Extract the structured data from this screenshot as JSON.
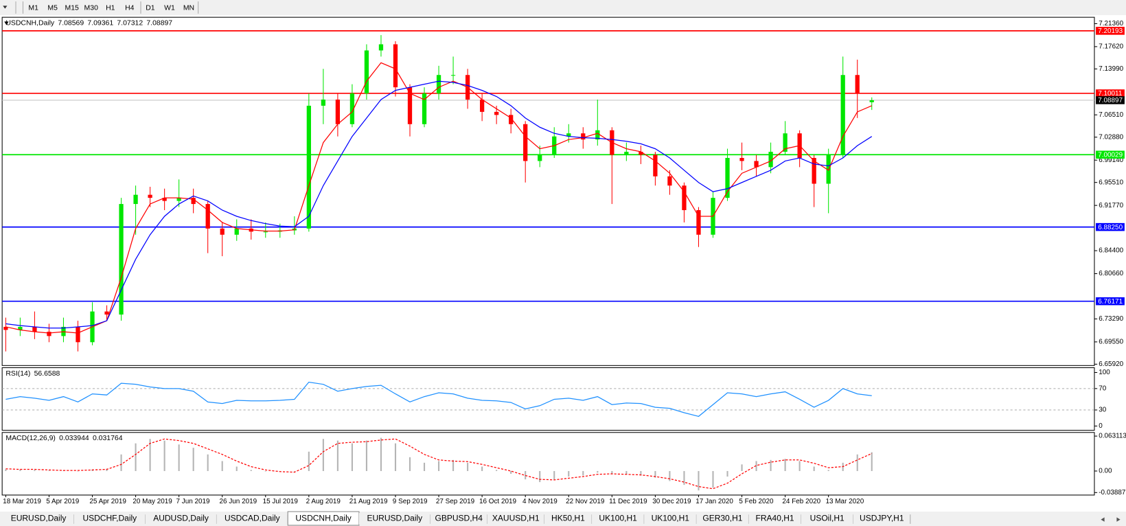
{
  "toolbar": [
    "M1",
    "M5",
    "M15",
    "M30",
    "H1",
    "H4",
    "D1",
    "W1",
    "MN"
  ],
  "chart_data": [
    {
      "type": "candlestick",
      "title": "USDCNH,Daily",
      "categories": [
        "18 Mar 2019",
        null,
        null,
        "5 Apr 2019",
        null,
        null,
        "25 Apr 2019",
        null,
        null,
        "20 May 2019",
        null,
        null,
        "7 Jun 2019",
        null,
        null,
        "26 Jun 2019",
        null,
        null,
        "15 Jul 2019",
        null,
        null,
        "2 Aug 2019",
        null,
        null,
        "21 Aug 2019",
        null,
        null,
        "9 Sep 2019",
        null,
        null,
        "27 Sep 2019",
        null,
        null,
        "16 Oct 2019",
        null,
        null,
        "4 Nov 2019",
        null,
        null,
        "22 Nov 2019",
        null,
        null,
        "11 Dec 2019",
        null,
        null,
        "30 Dec 2019",
        null,
        null,
        "17 Jan 2020",
        null,
        null,
        "5 Feb 2020",
        null,
        null,
        "24 Feb 2020",
        null,
        null,
        "13 Mar 2020",
        null,
        null,
        null
      ],
      "open": [
        6.72,
        6.715,
        6.72,
        6.712,
        6.705,
        6.72,
        6.695,
        6.745,
        6.74,
        6.92,
        6.935,
        6.93,
        6.925,
        6.93,
        6.92,
        6.88,
        6.87,
        6.88,
        6.875,
        6.875,
        6.877,
        6.88,
        7.08,
        7.09,
        7.05,
        7.1,
        7.17,
        7.18,
        7.11,
        7.05,
        7.1,
        7.13,
        7.13,
        7.09,
        7.07,
        7.065,
        7.05,
        6.99,
        7.0,
        7.03,
        7.035,
        7.025,
        7.04,
        7.0,
        7.005,
        7.0,
        6.965,
        6.95,
        6.91,
        6.87,
        6.93,
        6.995,
        6.99,
        6.98,
        7.005,
        7.035,
        6.995,
        6.953,
        7.0,
        7.13,
        7.08569
      ],
      "high": [
        6.735,
        6.735,
        6.745,
        6.725,
        6.735,
        6.73,
        6.76,
        6.755,
        6.93,
        6.95,
        6.948,
        6.945,
        6.96,
        6.945,
        6.925,
        6.89,
        6.895,
        6.895,
        6.89,
        6.888,
        6.9,
        7.1,
        7.14,
        7.1,
        7.115,
        7.18,
        7.195,
        7.185,
        7.115,
        7.11,
        7.145,
        7.16,
        7.14,
        7.1,
        7.08,
        7.075,
        7.055,
        7.015,
        7.045,
        7.05,
        7.045,
        7.09,
        7.045,
        7.02,
        7.015,
        7.005,
        6.975,
        6.955,
        6.915,
        6.94,
        7.01,
        7.02,
        7.0,
        7.02,
        7.055,
        7.04,
        7.0,
        7.01,
        7.16,
        7.155,
        7.09361
      ],
      "low": [
        6.68,
        6.705,
        6.7,
        6.695,
        6.695,
        6.68,
        6.69,
        6.73,
        6.73,
        6.87,
        6.915,
        6.91,
        6.915,
        6.905,
        6.84,
        6.835,
        6.86,
        6.862,
        6.865,
        6.865,
        6.87,
        6.875,
        7.05,
        7.03,
        7.045,
        7.09,
        7.16,
        7.095,
        7.03,
        7.045,
        7.09,
        7.115,
        7.075,
        7.055,
        7.05,
        7.035,
        6.955,
        6.98,
        6.995,
        7.02,
        7.01,
        7.015,
        6.92,
        6.99,
        6.985,
        6.95,
        6.935,
        6.89,
        6.85,
        6.865,
        6.925,
        6.975,
        6.965,
        6.97,
        7.0,
        6.98,
        6.915,
        6.905,
        6.995,
        7.06,
        7.07312
      ],
      "close": [
        6.715,
        6.72,
        6.712,
        6.705,
        6.72,
        6.695,
        6.745,
        6.74,
        6.92,
        6.935,
        6.93,
        6.925,
        6.93,
        6.92,
        6.88,
        6.87,
        6.88,
        6.875,
        6.875,
        6.877,
        6.88,
        7.08,
        7.09,
        7.05,
        7.1,
        7.17,
        7.18,
        7.11,
        7.05,
        7.1,
        7.13,
        7.13,
        7.09,
        7.07,
        7.065,
        7.05,
        6.99,
        7.0,
        7.03,
        7.035,
        7.025,
        7.04,
        7.0,
        7.005,
        7.0,
        6.965,
        6.95,
        6.91,
        6.87,
        6.93,
        6.995,
        6.99,
        6.98,
        7.005,
        7.035,
        6.995,
        6.953,
        7.0,
        7.13,
        7.1,
        7.08897
      ],
      "up_color": "#00e600",
      "down_color": "#ff0000",
      "series": [
        {
          "color": "#ff0000",
          "values": [
            6.72,
            6.715,
            6.712,
            6.71,
            6.712,
            6.71,
            6.72,
            6.73,
            6.8,
            6.88,
            6.92,
            6.93,
            6.93,
            6.928,
            6.91,
            6.89,
            6.88,
            6.878,
            6.876,
            6.876,
            6.878,
            6.95,
            7.02,
            7.05,
            7.07,
            7.12,
            7.15,
            7.14,
            7.1,
            7.09,
            7.11,
            7.12,
            7.11,
            7.09,
            7.075,
            7.06,
            7.03,
            7.01,
            7.015,
            7.025,
            7.028,
            7.035,
            7.02,
            7.01,
            7.005,
            6.99,
            6.97,
            6.94,
            6.9,
            6.9,
            6.94,
            6.97,
            6.98,
            6.99,
            7.01,
            7.015,
            6.99,
            6.975,
            7.03,
            7.07,
            7.08
          ]
        },
        {
          "color": "#0000ff",
          "values": [
            6.725,
            6.722,
            6.72,
            6.718,
            6.718,
            6.72,
            6.722,
            6.73,
            6.78,
            6.83,
            6.87,
            6.9,
            6.92,
            6.933,
            6.925,
            6.91,
            6.9,
            6.893,
            6.888,
            6.884,
            6.883,
            6.9,
            6.95,
            6.99,
            7.03,
            7.06,
            7.09,
            7.105,
            7.11,
            7.115,
            7.12,
            7.118,
            7.113,
            7.105,
            7.095,
            7.08,
            7.06,
            7.045,
            7.035,
            7.03,
            7.028,
            7.027,
            7.025,
            7.022,
            7.018,
            7.01,
            6.995,
            6.975,
            6.955,
            6.94,
            6.945,
            6.955,
            6.965,
            6.975,
            6.99,
            6.995,
            6.985,
            6.982,
            6.995,
            7.015,
            7.03
          ]
        }
      ],
      "levels": [
        {
          "value": 7.20193,
          "color": "#ff0000"
        },
        {
          "value": 7.10011,
          "color": "#ff0000"
        },
        {
          "value": 7.00029,
          "color": "#00e600"
        },
        {
          "value": 6.8825,
          "label": "6.88250",
          "color": "#0000ff"
        },
        {
          "value": 6.76171,
          "color": "#0000ff"
        }
      ],
      "ylim": [
        6.657,
        7.224
      ],
      "yticks": [
        {
          "value": 7.2136,
          "label": "7.21360"
        },
        {
          "value": 7.1762,
          "label": "7.17620"
        },
        {
          "value": 7.1399,
          "label": "7.13990"
        },
        {
          "value": 7.0651,
          "label": "7.06510"
        },
        {
          "value": 7.0288,
          "label": "7.02880"
        },
        {
          "value": 6.9914,
          "label": "6.99140"
        },
        {
          "value": 6.9551,
          "label": "6.95510"
        },
        {
          "value": 6.9177,
          "label": "6.91770"
        },
        {
          "value": 6.844,
          "label": "6.84400"
        },
        {
          "value": 6.8066,
          "label": "6.80660"
        },
        {
          "value": 6.7329,
          "label": "6.73290"
        },
        {
          "value": 6.6955,
          "label": "6.69550"
        },
        {
          "value": 6.6592,
          "label": "6.65920"
        }
      ],
      "grid": false
    },
    {
      "type": "line",
      "title": "RSI(14)",
      "color": "#1e90ff",
      "values": [
        50,
        55,
        52,
        48,
        55,
        45,
        60,
        58,
        80,
        78,
        73,
        70,
        70,
        65,
        45,
        42,
        48,
        47,
        47,
        48,
        50,
        82,
        78,
        65,
        70,
        74,
        76,
        60,
        45,
        55,
        62,
        60,
        52,
        48,
        47,
        44,
        32,
        38,
        50,
        52,
        48,
        55,
        40,
        43,
        42,
        35,
        33,
        25,
        18,
        40,
        62,
        60,
        55,
        60,
        64,
        50,
        35,
        48,
        70,
        60,
        56.6588
      ],
      "levels": [
        70,
        30
      ],
      "ylim": [
        -8,
        109
      ],
      "yticks": [
        100,
        70,
        30,
        0
      ]
    },
    {
      "type": "macd",
      "title": "MACD(12,26,9)",
      "color": "#b4b4b4",
      "values": [
        0.003,
        0.003,
        0.002,
        0.001,
        0.001,
        0,
        0.003,
        0.004,
        0.03,
        0.05,
        0.058,
        0.055,
        0.048,
        0.042,
        0.03,
        0.018,
        0.008,
        0.002,
        -0.001,
        -0.001,
        0,
        0.035,
        0.058,
        0.055,
        0.05,
        0.055,
        0.06,
        0.05,
        0.025,
        0.015,
        0.018,
        0.02,
        0.015,
        0.008,
        0.002,
        -0.005,
        -0.015,
        -0.02,
        -0.015,
        -0.01,
        -0.008,
        -0.003,
        -0.005,
        -0.006,
        -0.008,
        -0.012,
        -0.018,
        -0.025,
        -0.035,
        -0.03,
        -0.01,
        0.012,
        0.018,
        0.02,
        0.022,
        0.018,
        0.008,
        0.002,
        0.015,
        0.03,
        0.033944
      ],
      "series": [
        {
          "color": "#ff0000",
          "values": [
            0.004,
            0.003,
            0.003,
            0.002,
            0.001,
            0.001,
            0.002,
            0.003,
            0.012,
            0.03,
            0.05,
            0.058,
            0.055,
            0.05,
            0.04,
            0.03,
            0.018,
            0.008,
            0.002,
            -0.001,
            -0.002,
            0.01,
            0.035,
            0.05,
            0.052,
            0.053,
            0.056,
            0.058,
            0.045,
            0.03,
            0.02,
            0.018,
            0.017,
            0.012,
            0.006,
            0,
            -0.008,
            -0.015,
            -0.016,
            -0.013,
            -0.01,
            -0.006,
            -0.005,
            -0.006,
            -0.007,
            -0.01,
            -0.014,
            -0.02,
            -0.028,
            -0.032,
            -0.022,
            -0.005,
            0.01,
            0.016,
            0.02,
            0.02,
            0.014,
            0.006,
            0.008,
            0.02,
            0.031764
          ]
        }
      ],
      "ylim": [
        -0.0434,
        0.0697
      ],
      "yticks": [
        0.063113,
        {
          "value": 0,
          "label": "0.00"
        },
        -0.038872
      ]
    }
  ],
  "tabs": [
    "EURUSD,Daily",
    "USDCHF,Daily",
    "AUDUSD,Daily",
    "USDCAD,Daily",
    "USDCNH,Daily",
    "EURUSD,Daily",
    "GBPUSD,H4",
    "XAUUSD,H1",
    "HK50,H1",
    "UK100,H1",
    "UK100,H1",
    "GER30,H1",
    "FRA40,H1",
    "USOil,H1",
    "USDJPY,H1"
  ],
  "active_tab": 4
}
